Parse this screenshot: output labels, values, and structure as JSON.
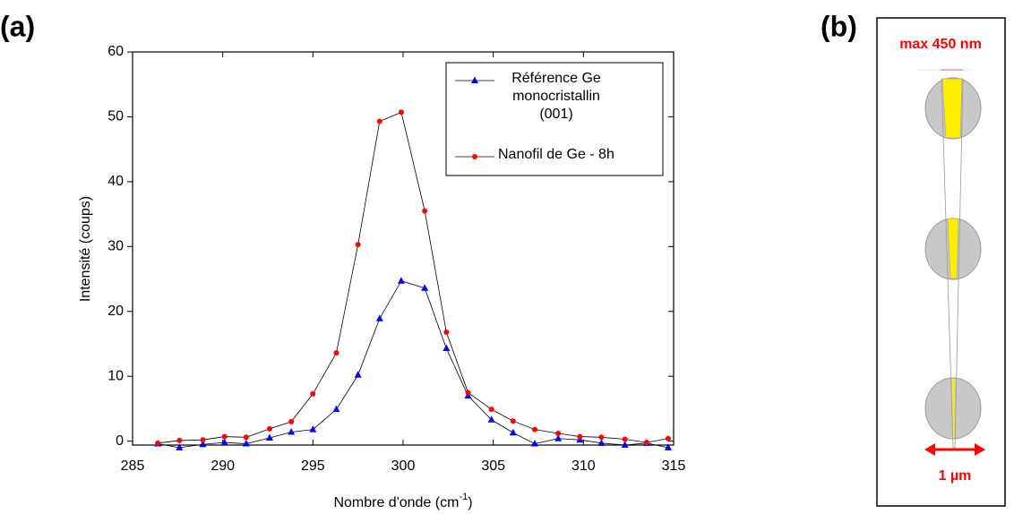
{
  "chart_data": {
    "type": "line",
    "panel_label": "(a)",
    "xlabel": [
      "Nombre d'onde (cm",
      "-1",
      ")"
    ],
    "ylabel": "Intensité (coups)",
    "x": [
      286.4,
      287.6,
      288.9,
      290.1,
      291.3,
      292.6,
      293.8,
      295.0,
      296.3,
      297.5,
      298.7,
      299.9,
      301.2,
      302.4,
      303.6,
      304.9,
      306.1,
      307.3,
      308.6,
      309.8,
      311.0,
      312.3,
      313.5,
      314.7
    ],
    "series": [
      {
        "name": "Référence Ge monocristallin (001)",
        "color": "#0000ff",
        "marker": "triangle",
        "values": [
          -0.4,
          -1.0,
          -0.5,
          -0.2,
          -0.4,
          0.5,
          1.4,
          1.8,
          4.9,
          10.2,
          18.9,
          24.7,
          23.6,
          14.3,
          7.0,
          3.3,
          1.3,
          -0.4,
          0.4,
          0.2,
          -0.3,
          -0.6,
          -0.3,
          -1.0
        ]
      },
      {
        "name": "Nanofil de Ge - 8h",
        "color": "#ff0000",
        "marker": "circle",
        "values": [
          -0.3,
          0.1,
          0.2,
          0.7,
          0.6,
          1.9,
          3.0,
          7.3,
          13.6,
          30.3,
          49.3,
          50.7,
          35.5,
          16.8,
          7.5,
          4.9,
          3.1,
          1.8,
          1.2,
          0.7,
          0.6,
          0.3,
          -0.2,
          0.4
        ]
      }
    ],
    "xlim": [
      285,
      315
    ],
    "xticks": [
      285,
      290,
      295,
      300,
      305,
      310,
      315
    ],
    "ylim": [
      -0.6,
      60
    ],
    "yticks": [
      0,
      10,
      20,
      30,
      40,
      50,
      60
    ],
    "legend": "upper right"
  },
  "diagram": {
    "panel_label": "(b)",
    "top_label": "max 450 nm",
    "bottom_label": "1 µm"
  }
}
